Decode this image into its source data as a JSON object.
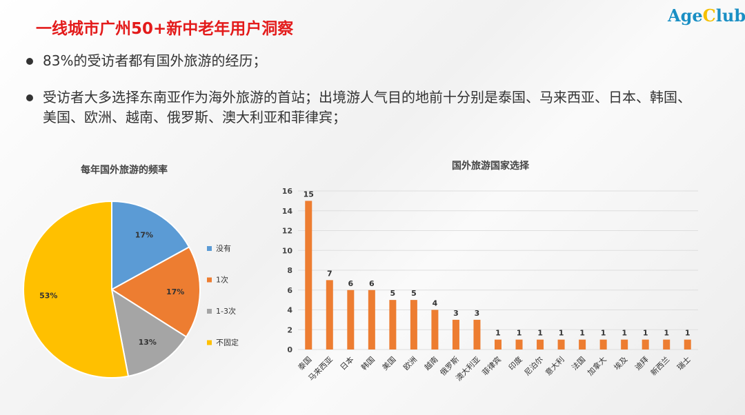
{
  "title": "一线城市广州50+新中老年用户洞察",
  "logo": {
    "part1": "Age",
    "part2": "C",
    "part3": "lub"
  },
  "bullets": [
    "83%的受访者都有国外旅游的经历；",
    "受访者大多选择东南亚作为海外旅游的首站；出境游人气目的地前十分别是泰国、马来西亚、日本、韩国、美国、欧洲、越南、俄罗斯、澳大利亚和菲律宾；"
  ],
  "chart_data": [
    {
      "type": "pie",
      "title": "每年国外旅游的频率",
      "legend_position": "right",
      "slices": [
        {
          "label": "没有",
          "value": 17,
          "data_label": "17%",
          "color": "#5B9BD5"
        },
        {
          "label": "1次",
          "value": 17,
          "data_label": "17%",
          "color": "#ED7D31"
        },
        {
          "label": "1-3次",
          "value": 13,
          "data_label": "13%",
          "color": "#A5A5A5"
        },
        {
          "label": "不固定",
          "value": 53,
          "data_label": "53%",
          "color": "#FFC000"
        }
      ]
    },
    {
      "type": "bar",
      "title": "国外旅游国家选择",
      "categories": [
        "泰国",
        "马来西亚",
        "日本",
        "韩国",
        "美国",
        "欧洲",
        "越南",
        "俄罗斯",
        "澳大利亚",
        "菲律宾",
        "印度",
        "尼泊尔",
        "意大利",
        "法国",
        "加拿大",
        "埃及",
        "迪拜",
        "新西兰",
        "瑞士"
      ],
      "values": [
        15,
        7,
        6,
        6,
        5,
        5,
        4,
        3,
        3,
        1,
        1,
        1,
        1,
        1,
        1,
        1,
        1,
        1,
        1
      ],
      "ylim": [
        0,
        16
      ],
      "yticks": [
        0,
        2,
        4,
        6,
        8,
        10,
        12,
        14,
        16
      ],
      "grid": true,
      "color": "#ED7D31"
    }
  ]
}
